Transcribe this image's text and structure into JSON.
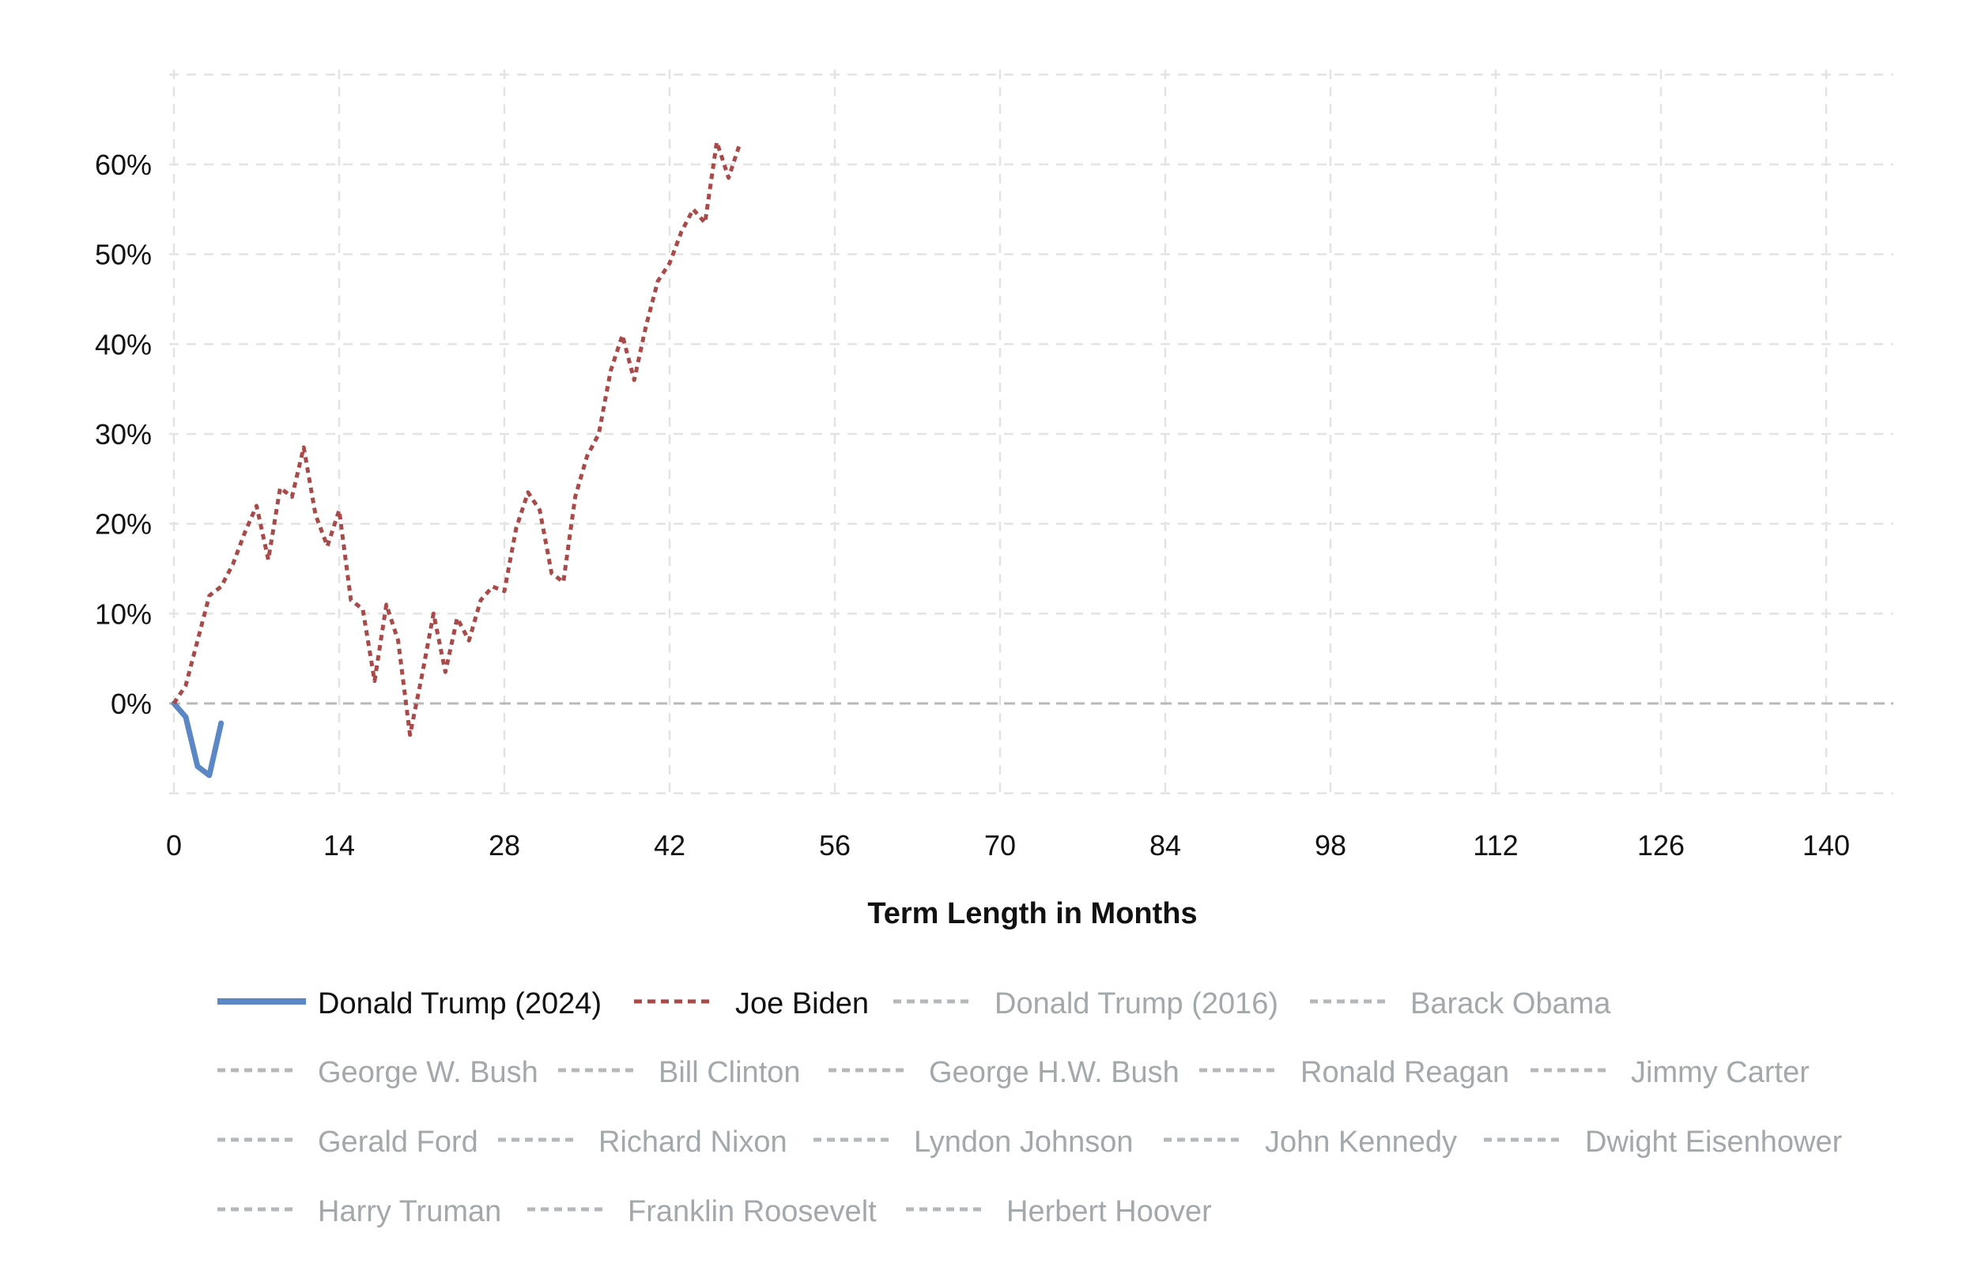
{
  "chart_data": {
    "type": "line",
    "xlabel": "Term Length in Months",
    "ylabel": "",
    "xlim": [
      0,
      146
    ],
    "ylim": [
      -10,
      70
    ],
    "x_ticks": [
      0,
      14,
      28,
      42,
      56,
      70,
      84,
      98,
      112,
      126,
      140
    ],
    "y_ticks": [
      0,
      10,
      20,
      30,
      40,
      50,
      60
    ],
    "x_tick_labels": [
      "0",
      "14",
      "28",
      "42",
      "56",
      "70",
      "84",
      "98",
      "112",
      "126",
      "140"
    ],
    "y_tick_labels": [
      "0%",
      "10%",
      "20%",
      "30%",
      "40%",
      "50%",
      "60%"
    ],
    "grid": true,
    "legend_position": "bottom",
    "series": [
      {
        "name": "Donald Trump (2024)",
        "color": "#5b87c5",
        "style": "solid",
        "active": true,
        "x": [
          0,
          1,
          2,
          3,
          4
        ],
        "y": [
          0,
          -1.5,
          -7,
          -8,
          -2.2
        ]
      },
      {
        "name": "Joe Biden",
        "color": "#a94a4a",
        "style": "dotted",
        "active": true,
        "x": [
          0,
          1,
          2,
          3,
          4,
          5,
          6,
          7,
          8,
          9,
          10,
          11,
          12,
          13,
          14,
          15,
          16,
          17,
          18,
          19,
          20,
          21,
          22,
          23,
          24,
          25,
          26,
          27,
          28,
          29,
          30,
          31,
          32,
          33,
          34,
          35,
          36,
          37,
          38,
          39,
          40,
          41,
          42,
          43,
          44,
          45,
          46,
          47,
          48
        ],
        "y": [
          0,
          2,
          7,
          12,
          13,
          15.5,
          19,
          22,
          16,
          24,
          23,
          28.5,
          21,
          17.5,
          21.5,
          11.5,
          10.5,
          2.5,
          11,
          7,
          -3.5,
          3,
          10,
          3.5,
          9.5,
          7,
          11.5,
          13,
          12.5,
          19.5,
          23.5,
          21.5,
          14.5,
          13.5,
          23,
          27.5,
          30,
          37,
          41,
          36,
          42,
          47,
          49,
          52.5,
          55,
          53.5,
          62.5,
          58.5,
          62.5
        ]
      },
      {
        "name": "Donald Trump (2016)",
        "color": "#b4b8bb",
        "style": "dashed",
        "active": false
      },
      {
        "name": "Barack Obama",
        "color": "#b4b8bb",
        "style": "dashed",
        "active": false
      },
      {
        "name": "George W. Bush",
        "color": "#b4b8bb",
        "style": "dashed",
        "active": false
      },
      {
        "name": "Bill Clinton",
        "color": "#b4b8bb",
        "style": "dashed",
        "active": false
      },
      {
        "name": "George H.W. Bush",
        "color": "#b4b8bb",
        "style": "dashed",
        "active": false
      },
      {
        "name": "Ronald Reagan",
        "color": "#b4b8bb",
        "style": "dashed",
        "active": false
      },
      {
        "name": "Jimmy Carter",
        "color": "#b4b8bb",
        "style": "dashed",
        "active": false
      },
      {
        "name": "Gerald Ford",
        "color": "#b4b8bb",
        "style": "dashed",
        "active": false
      },
      {
        "name": "Richard Nixon",
        "color": "#b4b8bb",
        "style": "dashed",
        "active": false
      },
      {
        "name": "Lyndon Johnson",
        "color": "#b4b8bb",
        "style": "dashed",
        "active": false
      },
      {
        "name": "John Kennedy",
        "color": "#b4b8bb",
        "style": "dashed",
        "active": false
      },
      {
        "name": "Dwight Eisenhower",
        "color": "#b4b8bb",
        "style": "dashed",
        "active": false
      },
      {
        "name": "Harry Truman",
        "color": "#b4b8bb",
        "style": "dashed",
        "active": false
      },
      {
        "name": "Franklin Roosevelt",
        "color": "#b4b8bb",
        "style": "dashed",
        "active": false
      },
      {
        "name": "Herbert Hoover",
        "color": "#b4b8bb",
        "style": "dashed",
        "active": false
      }
    ]
  },
  "colors": {
    "grid": "#e3e3e3",
    "zero_line": "#b9b9b9",
    "text": "#111111",
    "inactive_text": "#a3a8ab",
    "active_text": "#111111"
  }
}
